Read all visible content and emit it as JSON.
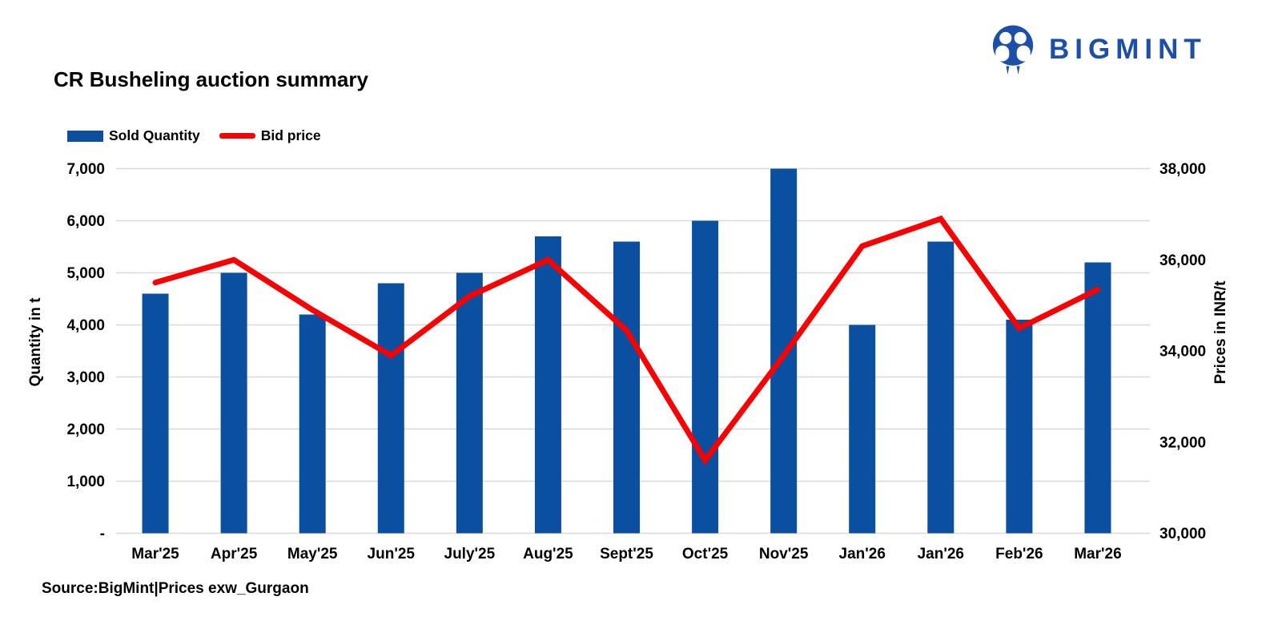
{
  "header": {
    "title": "CR Busheling auction summary"
  },
  "logo": {
    "text": "BIGMINT",
    "icon": "bigmint-people-icon",
    "color": "#1B4FA9"
  },
  "legend": [
    {
      "label": "Sold Quantity",
      "marker": "bar-swatch",
      "color": "#0B4FA1"
    },
    {
      "label": "Bid price",
      "marker": "line-swatch",
      "color": "#FB0000"
    }
  ],
  "footer": {
    "source": "Source:BigMint|Prices exw_Gurgaon"
  },
  "chart_data": {
    "type": "bar-line-combo",
    "title": "CR Busheling auction summary",
    "categories": [
      "Mar'25",
      "Apr'25",
      "May'25",
      "Jun'25",
      "July'25",
      "Aug'25",
      "Sept'25",
      "Oct'25",
      "Nov'25",
      "Jan'26",
      "Jan'26",
      "Feb'26",
      "Mar'26"
    ],
    "series": [
      {
        "name": "Sold Quantity",
        "type": "bar",
        "axis": "left",
        "color": "#0B4FA1",
        "values": [
          4600,
          5000,
          4200,
          4800,
          5000,
          5700,
          5600,
          6000,
          7000,
          4000,
          5600,
          4100,
          5200
        ]
      },
      {
        "name": "Bid price",
        "type": "line",
        "axis": "right",
        "color": "#FB0000",
        "values": [
          35500,
          36000,
          34900,
          33900,
          35200,
          36000,
          34450,
          31600,
          33900,
          36300,
          36900,
          34500,
          35350
        ]
      }
    ],
    "left_axis": {
      "label": "Quantity in t",
      "min": 0,
      "max": 7000,
      "tick_step": 1000,
      "tick_values": [
        0,
        1000,
        2000,
        3000,
        4000,
        5000,
        6000,
        7000
      ],
      "tick_labels": [
        "-",
        "1,000",
        "2,000",
        "3,000",
        "4,000",
        "5,000",
        "6,000",
        "7,000"
      ]
    },
    "right_axis": {
      "label": "Prices in INR/t",
      "min": 30000,
      "max": 38000,
      "tick_step": 2000,
      "tick_values": [
        30000,
        32000,
        34000,
        36000,
        38000
      ],
      "tick_labels": [
        "30,000",
        "32,000",
        "34,000",
        "36,000",
        "38,000"
      ]
    },
    "grid": true,
    "legend_position": "top-left",
    "gridline_color": "#D9D9D9"
  }
}
